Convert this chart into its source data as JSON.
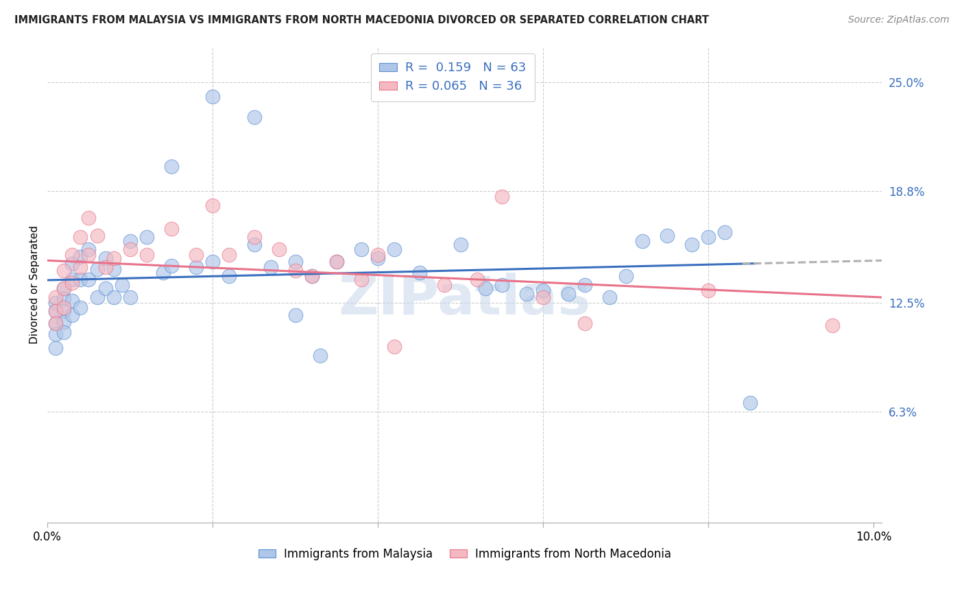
{
  "title": "IMMIGRANTS FROM MALAYSIA VS IMMIGRANTS FROM NORTH MACEDONIA DIVORCED OR SEPARATED CORRELATION CHART",
  "source": "Source: ZipAtlas.com",
  "ylabel": "Divorced or Separated",
  "xlim": [
    0.0,
    0.101
  ],
  "ylim": [
    0.0,
    0.27
  ],
  "xtick_vals": [
    0.0,
    0.02,
    0.04,
    0.06,
    0.08,
    0.1
  ],
  "xtick_labels": [
    "0.0%",
    "",
    "",
    "",
    "",
    "10.0%"
  ],
  "ytick_right_vals": [
    0.063,
    0.125,
    0.188,
    0.25
  ],
  "ytick_right_labels": [
    "6.3%",
    "12.5%",
    "18.8%",
    "25.0%"
  ],
  "legend_R1": "0.159",
  "legend_N1": "63",
  "legend_R2": "0.065",
  "legend_N2": "36",
  "blue_marker_color": "#aec6e8",
  "pink_marker_color": "#f4b8c1",
  "blue_edge_color": "#5b8fd4",
  "pink_edge_color": "#e8728a",
  "blue_line_color": "#3a6fbf",
  "pink_line_color": "#e8728a",
  "dashed_line_color": "#b0b0b0",
  "grid_color": "#cccccc",
  "title_color": "#222222",
  "axis_right_color": "#3a6fbf",
  "watermark": "ZIPatlas",
  "watermark_color": "#c8d8ea",
  "malaysia_x": [
    0.001,
    0.001,
    0.001,
    0.001,
    0.001,
    0.002,
    0.002,
    0.002,
    0.002,
    0.002,
    0.003,
    0.003,
    0.003,
    0.003,
    0.004,
    0.004,
    0.004,
    0.005,
    0.005,
    0.006,
    0.006,
    0.007,
    0.007,
    0.008,
    0.008,
    0.009,
    0.01,
    0.01,
    0.012,
    0.014,
    0.015,
    0.015,
    0.018,
    0.02,
    0.02,
    0.022,
    0.025,
    0.025,
    0.027,
    0.03,
    0.03,
    0.032,
    0.033,
    0.035,
    0.038,
    0.04,
    0.042,
    0.045,
    0.05,
    0.053,
    0.055,
    0.058,
    0.06,
    0.063,
    0.065,
    0.068,
    0.07,
    0.072,
    0.075,
    0.078,
    0.08,
    0.082,
    0.085
  ],
  "malaysia_y": [
    0.125,
    0.12,
    0.113,
    0.107,
    0.099,
    0.133,
    0.127,
    0.12,
    0.114,
    0.108,
    0.147,
    0.138,
    0.126,
    0.118,
    0.151,
    0.138,
    0.122,
    0.155,
    0.138,
    0.144,
    0.128,
    0.15,
    0.133,
    0.144,
    0.128,
    0.135,
    0.16,
    0.128,
    0.162,
    0.142,
    0.202,
    0.146,
    0.145,
    0.242,
    0.148,
    0.14,
    0.23,
    0.158,
    0.145,
    0.148,
    0.118,
    0.14,
    0.095,
    0.148,
    0.155,
    0.15,
    0.155,
    0.142,
    0.158,
    0.133,
    0.135,
    0.13,
    0.132,
    0.13,
    0.135,
    0.128,
    0.14,
    0.16,
    0.163,
    0.158,
    0.162,
    0.165,
    0.068
  ],
  "macedonia_x": [
    0.001,
    0.001,
    0.001,
    0.002,
    0.002,
    0.002,
    0.003,
    0.003,
    0.004,
    0.004,
    0.005,
    0.005,
    0.006,
    0.007,
    0.008,
    0.01,
    0.012,
    0.015,
    0.018,
    0.02,
    0.022,
    0.025,
    0.028,
    0.03,
    0.032,
    0.035,
    0.038,
    0.04,
    0.042,
    0.048,
    0.052,
    0.055,
    0.06,
    0.065,
    0.08,
    0.095
  ],
  "macedonia_y": [
    0.128,
    0.12,
    0.113,
    0.143,
    0.133,
    0.122,
    0.152,
    0.136,
    0.162,
    0.145,
    0.173,
    0.152,
    0.163,
    0.145,
    0.15,
    0.155,
    0.152,
    0.167,
    0.152,
    0.18,
    0.152,
    0.162,
    0.155,
    0.143,
    0.14,
    0.148,
    0.138,
    0.152,
    0.1,
    0.135,
    0.138,
    0.185,
    0.128,
    0.113,
    0.132,
    0.112
  ]
}
